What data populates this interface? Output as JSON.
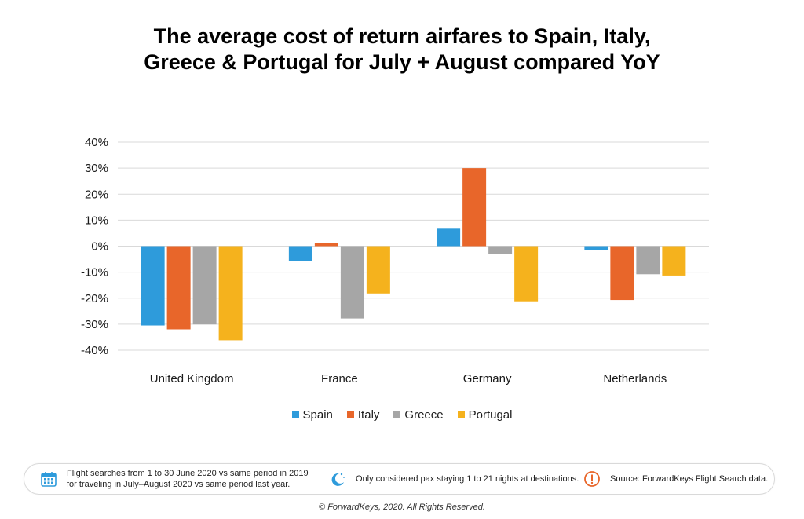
{
  "title_line1": "The average cost of return airfares to Spain, Italy,",
  "title_line2": "Greece & Portugal for July + August compared YoY",
  "chart_data": {
    "type": "bar",
    "categories": [
      "United Kingdom",
      "France",
      "Germany",
      "Netherlands"
    ],
    "series": [
      {
        "name": "Spain",
        "color": "#2e9bdb",
        "values": [
          -30.5,
          -5.8,
          6.7,
          -1.5
        ]
      },
      {
        "name": "Italy",
        "color": "#e8662a",
        "values": [
          -32.0,
          1.2,
          30.0,
          -20.7
        ]
      },
      {
        "name": "Greece",
        "color": "#a6a6a6",
        "values": [
          -30.1,
          -27.8,
          -3.0,
          -10.8
        ]
      },
      {
        "name": "Portugal",
        "color": "#f5b21d",
        "values": [
          -36.2,
          -18.2,
          -21.2,
          -11.3
        ]
      }
    ],
    "ylim": [
      -40,
      40
    ],
    "yticks": [
      "-40%",
      "-30%",
      "-20%",
      "-10%",
      "0%",
      "10%",
      "20%",
      "30%",
      "40%"
    ],
    "ytick_values": [
      -40,
      -30,
      -20,
      -10,
      0,
      10,
      20,
      30,
      40
    ],
    "grid": true,
    "legend": "bottom"
  },
  "info": {
    "item1_line1": "Flight searches from 1 to 30 June 2020 vs same period in 2019",
    "item1_line2": "for traveling in July–August 2020 vs same period last year.",
    "item2": "Only considered pax staying 1 to 21 nights at destinations.",
    "item3": "Source: ForwardKeys Flight Search data.",
    "icons": [
      "calendar-icon",
      "moon-stars-icon",
      "exclamation-icon"
    ]
  },
  "footer": "© ForwardKeys, 2020. All Rights Reserved."
}
